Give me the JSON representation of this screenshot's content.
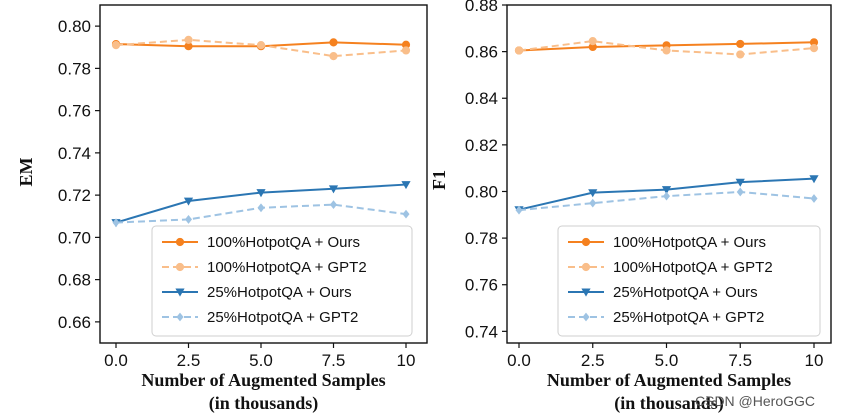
{
  "colors": {
    "ours_100": "#f5811f",
    "gpt2_100": "#f9be8a",
    "ours_25": "#2b76b3",
    "gpt2_25": "#9ec3e3"
  },
  "chart_data": [
    {
      "type": "line",
      "title": "",
      "xlabel": [
        "Number of Augmented Samples",
        "(in thousands)"
      ],
      "ylabel": "EM",
      "xlim": [
        0,
        10
      ],
      "ylim": [
        0.65,
        0.81
      ],
      "x": [
        0.0,
        2.5,
        5.0,
        7.5,
        10.0
      ],
      "xticks": [
        "0.0",
        "2.5",
        "5.0",
        "7.5",
        "10"
      ],
      "yticks": [
        0.66,
        0.68,
        0.7,
        0.72,
        0.74,
        0.76,
        0.78,
        0.8
      ],
      "ytick_labels": [
        "0.66",
        "0.68",
        "0.70",
        "0.72",
        "0.74",
        "0.76",
        "0.78",
        "0.80"
      ],
      "legend_position": "lower-right",
      "series": [
        {
          "name": "100%HotpotQA + Ours",
          "values": [
            0.7915,
            0.7905,
            0.7905,
            0.7923,
            0.7912
          ],
          "color": "#f5811f",
          "style": "solid",
          "marker": "circle"
        },
        {
          "name": "100%HotpotQA + GPT2",
          "values": [
            0.791,
            0.7935,
            0.791,
            0.7858,
            0.7885
          ],
          "color": "#f9be8a",
          "style": "dashed",
          "marker": "circle"
        },
        {
          "name": "25%HotpotQA + Ours",
          "values": [
            0.707,
            0.7172,
            0.7212,
            0.723,
            0.725
          ],
          "color": "#2b76b3",
          "style": "solid",
          "marker": "triangle-down"
        },
        {
          "name": "25%HotpotQA + GPT2",
          "values": [
            0.707,
            0.7085,
            0.714,
            0.7155,
            0.711
          ],
          "color": "#9ec3e3",
          "style": "dashed",
          "marker": "diamond"
        }
      ]
    },
    {
      "type": "line",
      "title": "",
      "xlabel": [
        "Number of Augmented Samples",
        "(in thousands)"
      ],
      "ylabel": "F1",
      "xlim": [
        0,
        10
      ],
      "ylim": [
        0.735,
        0.88
      ],
      "x": [
        0.0,
        2.5,
        5.0,
        7.5,
        10.0
      ],
      "xticks": [
        "0.0",
        "2.5",
        "5.0",
        "7.5",
        "10"
      ],
      "yticks": [
        0.74,
        0.76,
        0.78,
        0.8,
        0.82,
        0.84,
        0.86,
        0.88
      ],
      "ytick_labels": [
        "0.74",
        "0.76",
        "0.78",
        "0.80",
        "0.82",
        "0.84",
        "0.86",
        "0.88"
      ],
      "legend_position": "lower-right",
      "series": [
        {
          "name": "100%HotpotQA + Ours",
          "values": [
            0.8605,
            0.862,
            0.8627,
            0.8633,
            0.864
          ],
          "color": "#f5811f",
          "style": "solid",
          "marker": "circle"
        },
        {
          "name": "100%HotpotQA + GPT2",
          "values": [
            0.8605,
            0.8645,
            0.8605,
            0.8588,
            0.8615
          ],
          "color": "#f9be8a",
          "style": "dashed",
          "marker": "circle"
        },
        {
          "name": "25%HotpotQA + Ours",
          "values": [
            0.7922,
            0.7995,
            0.8008,
            0.804,
            0.8055
          ],
          "color": "#2b76b3",
          "style": "solid",
          "marker": "triangle-down"
        },
        {
          "name": "25%HotpotQA + GPT2",
          "values": [
            0.792,
            0.795,
            0.798,
            0.7998,
            0.797
          ],
          "color": "#9ec3e3",
          "style": "dashed",
          "marker": "diamond"
        }
      ]
    }
  ],
  "watermark": "CSDN @HeroGGC"
}
